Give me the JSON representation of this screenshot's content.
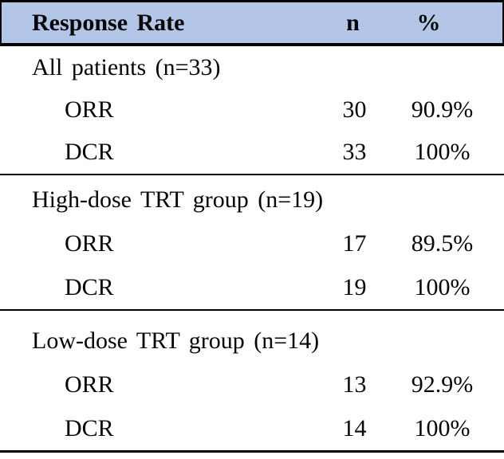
{
  "table": {
    "header": {
      "label": "Response Rate",
      "n": "n",
      "pct": "%"
    },
    "sections": [
      {
        "group": "All patients (n=33)",
        "rows": [
          {
            "label": "ORR",
            "n": "30",
            "pct": "90.9%"
          },
          {
            "label": "DCR",
            "n": "33",
            "pct": "100%"
          }
        ]
      },
      {
        "group": "High-dose TRT group (n=19)",
        "rows": [
          {
            "label": "ORR",
            "n": "17",
            "pct": "89.5%"
          },
          {
            "label": "DCR",
            "n": "19",
            "pct": "100%"
          }
        ]
      },
      {
        "group": "Low-dose TRT group (n=14)",
        "rows": [
          {
            "label": "ORR",
            "n": "13",
            "pct": "92.9%"
          },
          {
            "label": "DCR",
            "n": "14",
            "pct": "100%"
          }
        ]
      }
    ],
    "colors": {
      "header_bg": "#b4c6e7",
      "border": "#000000",
      "text": "#050505"
    }
  }
}
